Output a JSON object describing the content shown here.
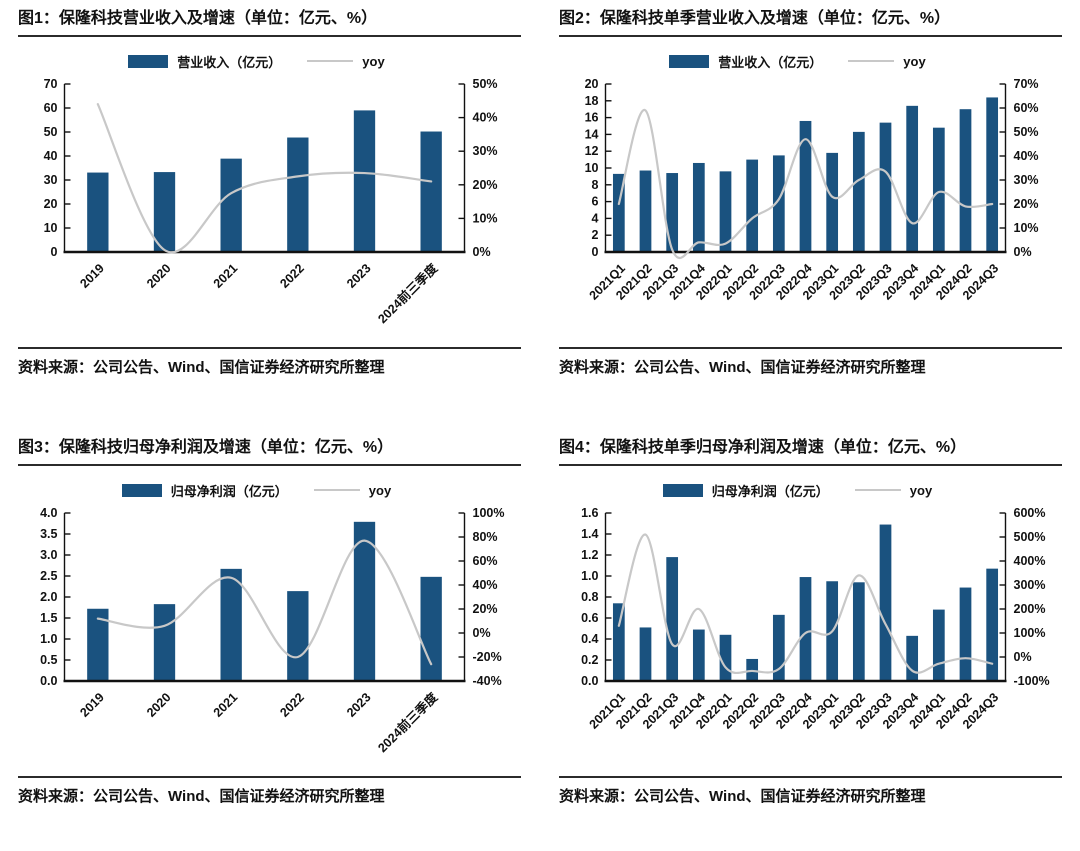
{
  "colors": {
    "bar": "#1A527F",
    "line": "#C8C8C8",
    "axis": "#111111",
    "rule": "#2B2B2B",
    "text": "#111111",
    "background": "#FFFFFF"
  },
  "source_note": "资料来源：公司公告、Wind、国信证券经济研究所整理",
  "chart_data": [
    {
      "type": "bar-line-combo",
      "title": "图1：保隆科技营业收入及增速（单位：亿元、%）",
      "categories": [
        "2019",
        "2020",
        "2021",
        "2022",
        "2023",
        "2024前三季度"
      ],
      "series": [
        {
          "name": "营业收入（亿元）",
          "type": "bar",
          "axis": "left",
          "values": [
            33.1,
            33.3,
            38.9,
            47.7,
            59.0,
            50.2
          ]
        },
        {
          "name": "yoy",
          "type": "line",
          "axis": "right",
          "unit": "%",
          "values": [
            44,
            0.6,
            17.5,
            22.5,
            23.5,
            21
          ]
        }
      ],
      "left_axis": {
        "min": 0,
        "max": 70,
        "step": 10,
        "decimals": 0
      },
      "right_axis": {
        "min": 0,
        "max": 50,
        "step": 10,
        "decimals": 0,
        "suffix": "%"
      },
      "legend_position": "top",
      "grid": false
    },
    {
      "type": "bar-line-combo",
      "title": "图2：保隆科技单季营业收入及增速（单位：亿元、%）",
      "categories": [
        "2021Q1",
        "2021Q2",
        "2021Q3",
        "2021Q4",
        "2022Q1",
        "2022Q2",
        "2022Q3",
        "2022Q4",
        "2023Q1",
        "2023Q2",
        "2023Q3",
        "2023Q4",
        "2024Q1",
        "2024Q2",
        "2024Q3"
      ],
      "series": [
        {
          "name": "营业收入（亿元）",
          "type": "bar",
          "axis": "left",
          "values": [
            9.3,
            9.7,
            9.4,
            10.6,
            9.6,
            11.0,
            11.5,
            15.6,
            11.8,
            14.3,
            15.4,
            17.4,
            14.8,
            17.0,
            18.4
          ]
        },
        {
          "name": "yoy",
          "type": "line",
          "axis": "right",
          "unit": "%",
          "values": [
            20,
            59,
            1,
            4,
            3.5,
            14,
            22,
            47,
            23,
            30,
            33.5,
            12,
            25,
            19,
            20
          ]
        }
      ],
      "left_axis": {
        "min": 0,
        "max": 20,
        "step": 2,
        "decimals": 0
      },
      "right_axis": {
        "min": 0,
        "max": 70,
        "step": 10,
        "decimals": 0,
        "suffix": "%"
      },
      "legend_position": "top",
      "grid": false
    },
    {
      "type": "bar-line-combo",
      "title": "图3：保隆科技归母净利润及增速（单位：亿元、%）",
      "categories": [
        "2019",
        "2020",
        "2021",
        "2022",
        "2023",
        "2024前三季度"
      ],
      "series": [
        {
          "name": "归母净利润（亿元）",
          "type": "bar",
          "axis": "left",
          "values": [
            1.72,
            1.83,
            2.67,
            2.14,
            3.79,
            2.48
          ]
        },
        {
          "name": "yoy",
          "type": "line",
          "axis": "right",
          "unit": "%",
          "values": [
            12,
            6,
            46,
            -20,
            77,
            -26
          ]
        }
      ],
      "left_axis": {
        "min": 0,
        "max": 4,
        "step": 0.5,
        "decimals": 1
      },
      "right_axis": {
        "min": -40,
        "max": 100,
        "step": 20,
        "decimals": 0,
        "suffix": "%"
      },
      "legend_position": "top",
      "grid": false
    },
    {
      "type": "bar-line-combo",
      "title": "图4：保隆科技单季归母净利润及增速（单位：亿元、%）",
      "categories": [
        "2021Q1",
        "2021Q2",
        "2021Q3",
        "2021Q4",
        "2022Q1",
        "2022Q2",
        "2022Q3",
        "2022Q4",
        "2023Q1",
        "2023Q2",
        "2023Q3",
        "2023Q4",
        "2024Q1",
        "2024Q2",
        "2024Q3"
      ],
      "series": [
        {
          "name": "归母净利润（亿元）",
          "type": "bar",
          "axis": "left",
          "values": [
            0.74,
            0.51,
            1.18,
            0.49,
            0.44,
            0.21,
            0.63,
            0.99,
            0.95,
            0.94,
            1.49,
            0.43,
            0.68,
            0.89,
            1.07
          ]
        },
        {
          "name": "yoy",
          "type": "line",
          "axis": "right",
          "unit": "%",
          "values": [
            130,
            510,
            53,
            200,
            -43,
            -58,
            -50,
            100,
            107,
            340,
            137,
            -57,
            -28,
            -5,
            -28
          ]
        }
      ],
      "left_axis": {
        "min": 0,
        "max": 1.6,
        "step": 0.2,
        "decimals": 1
      },
      "right_axis": {
        "min": -100,
        "max": 600,
        "step": 100,
        "decimals": 0,
        "suffix": "%"
      },
      "legend_position": "top",
      "grid": false
    }
  ]
}
